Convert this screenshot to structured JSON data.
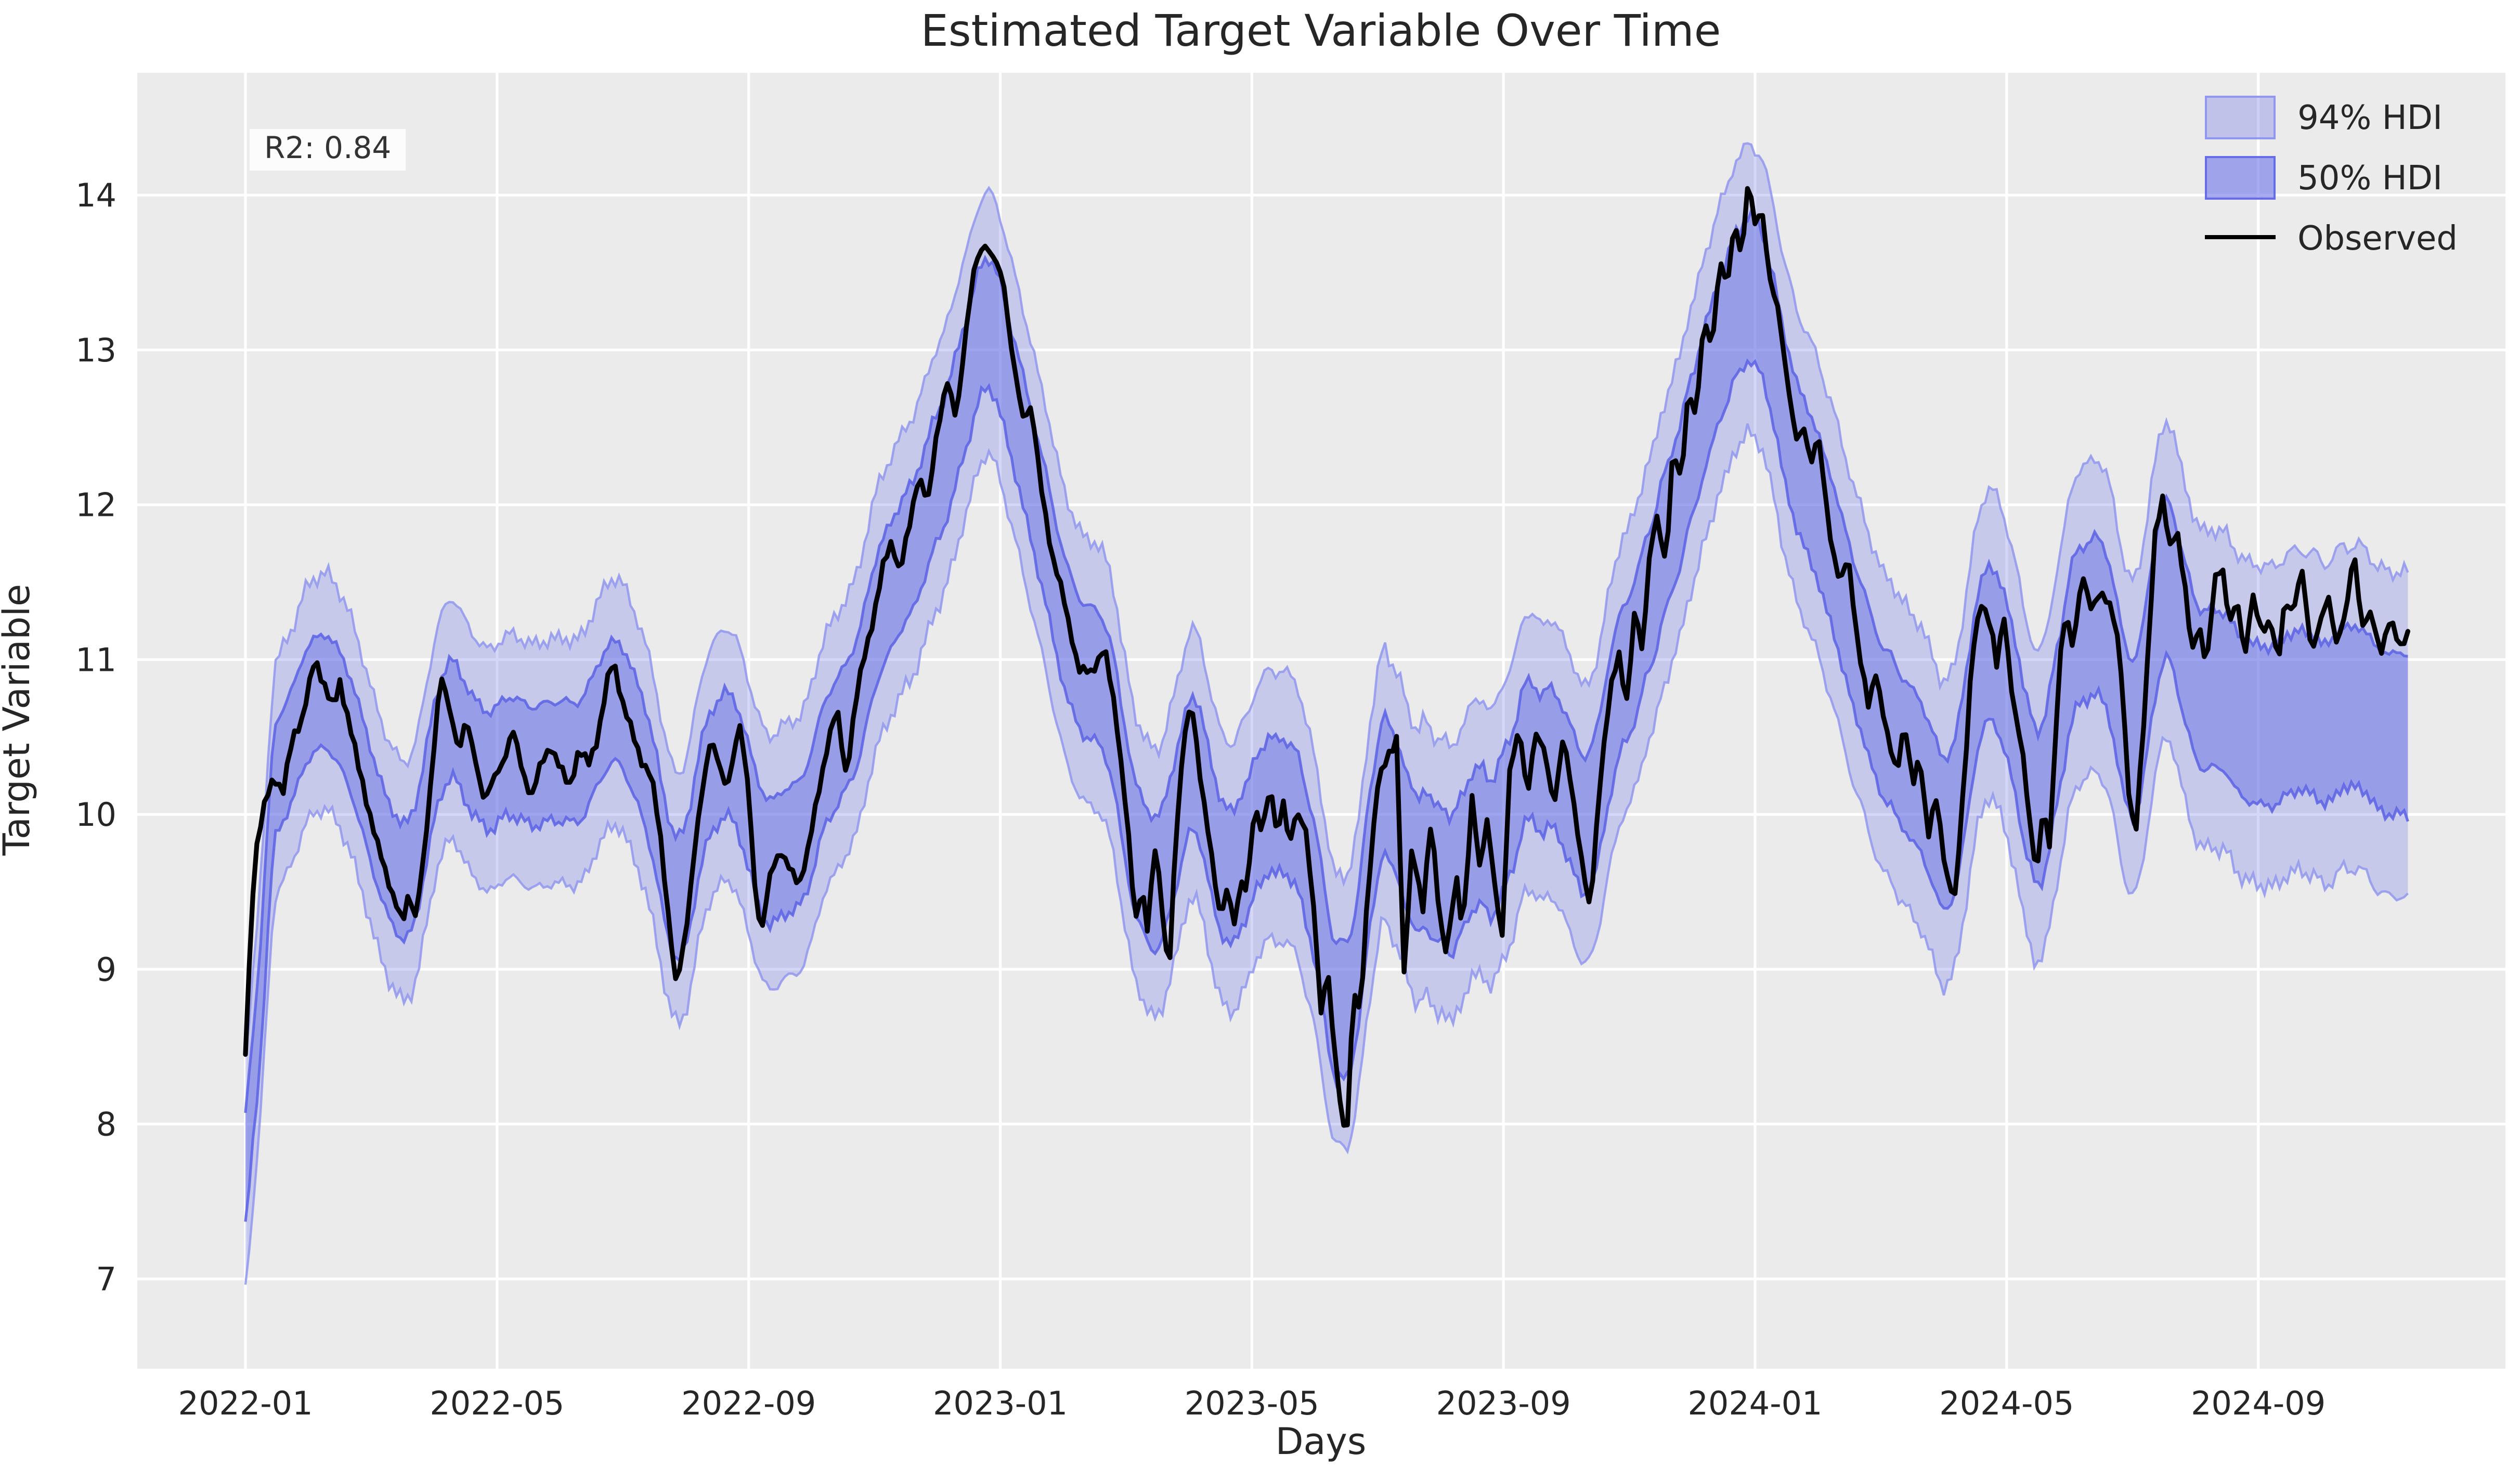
{
  "chart_data": {
    "type": "line",
    "title": "Estimated Target Variable Over Time",
    "xlabel": "Days",
    "ylabel": "Target Variable",
    "x_unit": "months_since_2022-01",
    "xlim_months": [
      -1.72,
      35.93
    ],
    "ylim": [
      6.42,
      14.79
    ],
    "grid": true,
    "plot_bg": "#ebebeb",
    "grid_color": "#ffffff",
    "text_color": "#262626",
    "yticks": [
      7,
      8,
      9,
      10,
      11,
      12,
      13,
      14
    ],
    "xticks": [
      {
        "t": 0,
        "label": "2022-01"
      },
      {
        "t": 4,
        "label": "2022-05"
      },
      {
        "t": 8,
        "label": "2022-09"
      },
      {
        "t": 12,
        "label": "2023-01"
      },
      {
        "t": 16,
        "label": "2023-05"
      },
      {
        "t": 20,
        "label": "2023-09"
      },
      {
        "t": 24,
        "label": "2024-01"
      },
      {
        "t": 28,
        "label": "2024-05"
      },
      {
        "t": 32,
        "label": "2024-09"
      }
    ],
    "legend": {
      "position": "upper right",
      "entries": [
        {
          "label": "94% HDI",
          "type": "patch",
          "fill": "rgba(123,130,233,0.38)",
          "edge": "rgba(140,146,238,0.9)"
        },
        {
          "label": "50% HDI",
          "type": "patch",
          "fill": "rgba(113,120,232,0.62)",
          "edge": "rgba(95,102,228,0.9)"
        },
        {
          "label": "Observed",
          "type": "line",
          "color": "#000000"
        }
      ]
    },
    "annotations": {
      "r2_label": "R2: 0.84"
    },
    "series": [
      {
        "name": "Observed",
        "color": "#000000",
        "linewidth": 2.3,
        "points_t_value": [
          [
            0.0,
            8.45
          ],
          [
            0.08,
            9.2
          ],
          [
            0.15,
            9.75
          ],
          [
            0.3,
            10.05
          ],
          [
            0.45,
            10.25
          ],
          [
            0.6,
            10.15
          ],
          [
            0.75,
            10.5
          ],
          [
            0.9,
            10.62
          ],
          [
            1.0,
            10.8
          ],
          [
            1.1,
            11.0
          ],
          [
            1.25,
            10.85
          ],
          [
            1.4,
            10.68
          ],
          [
            1.5,
            10.85
          ],
          [
            1.65,
            10.6
          ],
          [
            1.8,
            10.3
          ],
          [
            1.95,
            10.05
          ],
          [
            2.1,
            9.8
          ],
          [
            2.25,
            9.6
          ],
          [
            2.4,
            9.42
          ],
          [
            2.5,
            9.28
          ],
          [
            2.6,
            9.5
          ],
          [
            2.7,
            9.35
          ],
          [
            2.85,
            9.75
          ],
          [
            3.0,
            10.45
          ],
          [
            3.1,
            10.92
          ],
          [
            3.25,
            10.65
          ],
          [
            3.4,
            10.42
          ],
          [
            3.5,
            10.62
          ],
          [
            3.65,
            10.35
          ],
          [
            3.8,
            10.1
          ],
          [
            3.95,
            10.22
          ],
          [
            4.1,
            10.35
          ],
          [
            4.25,
            10.55
          ],
          [
            4.4,
            10.28
          ],
          [
            4.55,
            10.12
          ],
          [
            4.7,
            10.32
          ],
          [
            4.85,
            10.45
          ],
          [
            5.0,
            10.3
          ],
          [
            5.15,
            10.18
          ],
          [
            5.3,
            10.42
          ],
          [
            5.45,
            10.32
          ],
          [
            5.6,
            10.5
          ],
          [
            5.75,
            10.85
          ],
          [
            5.85,
            11.0
          ],
          [
            6.0,
            10.72
          ],
          [
            6.15,
            10.52
          ],
          [
            6.3,
            10.35
          ],
          [
            6.45,
            10.25
          ],
          [
            6.6,
            9.85
          ],
          [
            6.75,
            9.25
          ],
          [
            6.85,
            8.87
          ],
          [
            7.0,
            9.25
          ],
          [
            7.15,
            9.8
          ],
          [
            7.3,
            10.25
          ],
          [
            7.4,
            10.52
          ],
          [
            7.55,
            10.28
          ],
          [
            7.65,
            10.15
          ],
          [
            7.85,
            10.6
          ],
          [
            8.0,
            10.15
          ],
          [
            8.1,
            9.55
          ],
          [
            8.2,
            9.22
          ],
          [
            8.35,
            9.62
          ],
          [
            8.5,
            9.78
          ],
          [
            8.65,
            9.64
          ],
          [
            8.8,
            9.55
          ],
          [
            8.95,
            9.78
          ],
          [
            9.1,
            10.12
          ],
          [
            9.25,
            10.45
          ],
          [
            9.4,
            10.68
          ],
          [
            9.55,
            10.25
          ],
          [
            9.7,
            10.72
          ],
          [
            9.85,
            11.05
          ],
          [
            10.0,
            11.3
          ],
          [
            10.15,
            11.62
          ],
          [
            10.28,
            11.78
          ],
          [
            10.4,
            11.55
          ],
          [
            10.55,
            11.85
          ],
          [
            10.7,
            12.2
          ],
          [
            10.85,
            12.0
          ],
          [
            11.0,
            12.5
          ],
          [
            11.15,
            12.8
          ],
          [
            11.3,
            12.55
          ],
          [
            11.45,
            13.12
          ],
          [
            11.6,
            13.55
          ],
          [
            11.75,
            13.7
          ],
          [
            11.9,
            13.58
          ],
          [
            12.05,
            13.45
          ],
          [
            12.2,
            12.95
          ],
          [
            12.35,
            12.55
          ],
          [
            12.5,
            12.65
          ],
          [
            12.65,
            12.1
          ],
          [
            12.8,
            11.72
          ],
          [
            12.95,
            11.5
          ],
          [
            13.1,
            11.2
          ],
          [
            13.25,
            10.95
          ],
          [
            13.45,
            10.9
          ],
          [
            13.65,
            11.1
          ],
          [
            13.85,
            10.6
          ],
          [
            14.0,
            10.05
          ],
          [
            14.15,
            9.28
          ],
          [
            14.25,
            9.55
          ],
          [
            14.35,
            9.25
          ],
          [
            14.45,
            9.8
          ],
          [
            14.55,
            9.5
          ],
          [
            14.68,
            8.95
          ],
          [
            14.8,
            9.9
          ],
          [
            14.95,
            10.6
          ],
          [
            15.05,
            10.72
          ],
          [
            15.2,
            10.15
          ],
          [
            15.35,
            9.78
          ],
          [
            15.5,
            9.32
          ],
          [
            15.62,
            9.52
          ],
          [
            15.72,
            9.3
          ],
          [
            15.82,
            9.58
          ],
          [
            15.92,
            9.48
          ],
          [
            16.05,
            10.08
          ],
          [
            16.15,
            9.9
          ],
          [
            16.3,
            10.16
          ],
          [
            16.4,
            9.86
          ],
          [
            16.5,
            10.1
          ],
          [
            16.6,
            9.78
          ],
          [
            16.7,
            10.0
          ],
          [
            16.85,
            9.95
          ],
          [
            17.0,
            9.3
          ],
          [
            17.1,
            8.7
          ],
          [
            17.2,
            9.05
          ],
          [
            17.35,
            8.3
          ],
          [
            17.5,
            7.85
          ],
          [
            17.62,
            8.9
          ],
          [
            17.72,
            8.68
          ],
          [
            17.85,
            9.55
          ],
          [
            18.0,
            10.2
          ],
          [
            18.15,
            10.35
          ],
          [
            18.3,
            10.5
          ],
          [
            18.42,
            8.95
          ],
          [
            18.55,
            9.8
          ],
          [
            18.72,
            9.4
          ],
          [
            18.85,
            9.95
          ],
          [
            19.0,
            9.3
          ],
          [
            19.1,
            9.1
          ],
          [
            19.25,
            9.6
          ],
          [
            19.35,
            9.25
          ],
          [
            19.5,
            10.1
          ],
          [
            19.62,
            9.65
          ],
          [
            19.75,
            10.0
          ],
          [
            19.88,
            9.45
          ],
          [
            19.98,
            9.2
          ],
          [
            20.1,
            10.3
          ],
          [
            20.25,
            10.55
          ],
          [
            20.38,
            10.1
          ],
          [
            20.5,
            10.55
          ],
          [
            20.65,
            10.4
          ],
          [
            20.8,
            10.06
          ],
          [
            20.95,
            10.5
          ],
          [
            21.1,
            10.12
          ],
          [
            21.25,
            9.7
          ],
          [
            21.38,
            9.35
          ],
          [
            21.55,
            10.3
          ],
          [
            21.7,
            10.8
          ],
          [
            21.85,
            11.05
          ],
          [
            21.95,
            10.7
          ],
          [
            22.1,
            11.35
          ],
          [
            22.2,
            11.05
          ],
          [
            22.35,
            11.8
          ],
          [
            22.45,
            11.9
          ],
          [
            22.58,
            11.6
          ],
          [
            22.7,
            12.4
          ],
          [
            22.82,
            12.12
          ],
          [
            22.95,
            12.78
          ],
          [
            23.05,
            12.57
          ],
          [
            23.2,
            13.2
          ],
          [
            23.3,
            13.0
          ],
          [
            23.45,
            13.6
          ],
          [
            23.55,
            13.37
          ],
          [
            23.68,
            13.85
          ],
          [
            23.78,
            13.6
          ],
          [
            23.9,
            14.1
          ],
          [
            24.0,
            13.8
          ],
          [
            24.1,
            13.95
          ],
          [
            24.25,
            13.4
          ],
          [
            24.38,
            13.25
          ],
          [
            24.5,
            12.85
          ],
          [
            24.65,
            12.4
          ],
          [
            24.78,
            12.5
          ],
          [
            24.9,
            12.28
          ],
          [
            25.0,
            12.45
          ],
          [
            25.2,
            11.8
          ],
          [
            25.35,
            11.47
          ],
          [
            25.48,
            11.68
          ],
          [
            25.65,
            11.05
          ],
          [
            25.8,
            10.7
          ],
          [
            25.92,
            10.93
          ],
          [
            26.1,
            10.5
          ],
          [
            26.25,
            10.28
          ],
          [
            26.38,
            10.6
          ],
          [
            26.5,
            10.17
          ],
          [
            26.62,
            10.4
          ],
          [
            26.75,
            9.85
          ],
          [
            26.88,
            10.1
          ],
          [
            27.05,
            9.6
          ],
          [
            27.18,
            9.45
          ],
          [
            27.32,
            10.2
          ],
          [
            27.45,
            11.05
          ],
          [
            27.6,
            11.35
          ],
          [
            27.75,
            11.25
          ],
          [
            27.85,
            10.93
          ],
          [
            27.95,
            11.3
          ],
          [
            28.1,
            10.75
          ],
          [
            28.25,
            10.4
          ],
          [
            28.35,
            10.0
          ],
          [
            28.48,
            9.62
          ],
          [
            28.58,
            10.05
          ],
          [
            28.68,
            9.78
          ],
          [
            28.85,
            11.05
          ],
          [
            28.95,
            11.3
          ],
          [
            29.05,
            11.05
          ],
          [
            29.2,
            11.58
          ],
          [
            29.35,
            11.3
          ],
          [
            29.5,
            11.45
          ],
          [
            29.65,
            11.35
          ],
          [
            29.8,
            11.05
          ],
          [
            29.95,
            10.1
          ],
          [
            30.05,
            9.85
          ],
          [
            30.2,
            10.7
          ],
          [
            30.35,
            11.8
          ],
          [
            30.48,
            12.02
          ],
          [
            30.6,
            11.74
          ],
          [
            30.7,
            11.86
          ],
          [
            30.85,
            11.4
          ],
          [
            30.95,
            11.05
          ],
          [
            31.05,
            11.25
          ],
          [
            31.18,
            10.93
          ],
          [
            31.3,
            11.52
          ],
          [
            31.42,
            11.63
          ],
          [
            31.55,
            11.2
          ],
          [
            31.65,
            11.41
          ],
          [
            31.8,
            11.04
          ],
          [
            31.9,
            11.41
          ],
          [
            32.05,
            11.2
          ],
          [
            32.2,
            11.25
          ],
          [
            32.32,
            10.95
          ],
          [
            32.42,
            11.41
          ],
          [
            32.55,
            11.3
          ],
          [
            32.7,
            11.57
          ],
          [
            32.85,
            11.05
          ],
          [
            33.0,
            11.25
          ],
          [
            33.12,
            11.41
          ],
          [
            33.25,
            11.1
          ],
          [
            33.4,
            11.3
          ],
          [
            33.52,
            11.74
          ],
          [
            33.65,
            11.2
          ],
          [
            33.8,
            11.3
          ],
          [
            33.95,
            11.05
          ],
          [
            34.1,
            11.25
          ],
          [
            34.25,
            11.1
          ],
          [
            34.4,
            11.17
          ]
        ]
      }
    ],
    "hdi_bands": {
      "description": "posterior bands around smoothed observed",
      "fill94": "rgba(123,130,233,0.32)",
      "edge94": "rgba(145,150,238,0.85)",
      "fill50": "rgba(110,117,230,0.52)",
      "edge50": "rgba(95,102,228,0.9)",
      "halfwidth50_points": [
        [
          0,
          0.36
        ],
        [
          12,
          0.42
        ],
        [
          22,
          0.45
        ],
        [
          28,
          0.5
        ],
        [
          34.4,
          0.52
        ]
      ],
      "halfwidth94_points": [
        [
          0,
          0.75
        ],
        [
          12,
          0.85
        ],
        [
          22,
          0.9
        ],
        [
          28,
          1.0
        ],
        [
          34.4,
          1.05
        ]
      ],
      "mean_reversion_weight": 0.13,
      "mean_level": 10.5,
      "start_tail_center": 7.7,
      "start_tail_until_t": 0.45,
      "end_drift_start_t": 30.3,
      "end_drift_rate_per_month": 0.4,
      "end_drift_max": 0.55,
      "smooth_halfwindow_samples": 4,
      "obs_noise_amp": 0.04,
      "edge_noise_amp": 0.06,
      "dense_step_months": 0.06,
      "t_start": 0.0,
      "t_end": 34.4
    }
  }
}
